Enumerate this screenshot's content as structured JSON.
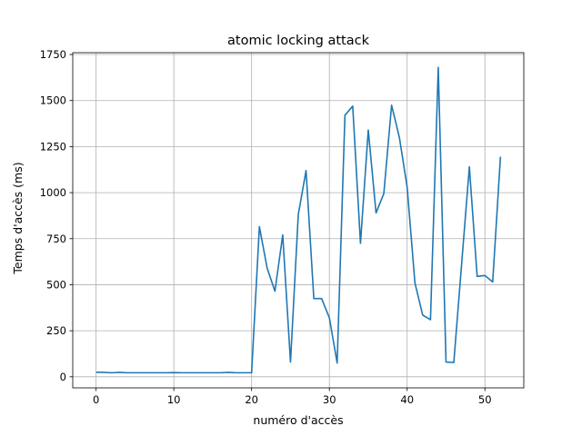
{
  "chart_data": {
    "type": "line",
    "title": "atomic locking attack",
    "xlabel": "numéro d'accès",
    "ylabel": "Temps d'accès (ms)",
    "xlim": [
      -3,
      55
    ],
    "ylim": [
      -60,
      1760
    ],
    "xticks": [
      0,
      10,
      20,
      30,
      40,
      50
    ],
    "yticks": [
      0,
      250,
      500,
      750,
      1000,
      1250,
      1500,
      1750
    ],
    "grid": true,
    "line_color": "#1f77b4",
    "series": [
      {
        "x": [
          0,
          1,
          2,
          3,
          4,
          5,
          6,
          7,
          8,
          9,
          10,
          11,
          12,
          13,
          14,
          15,
          16,
          17,
          18,
          19,
          20,
          21,
          22,
          23,
          24,
          25,
          26,
          27,
          28,
          29,
          30,
          31,
          32,
          33,
          34,
          35,
          36,
          37,
          38,
          39,
          40,
          41,
          42,
          43,
          44,
          45,
          46,
          47,
          48,
          49,
          50,
          51,
          52
        ],
        "values": [
          25,
          24,
          22,
          24,
          22,
          22,
          22,
          22,
          22,
          22,
          23,
          22,
          22,
          22,
          22,
          22,
          22,
          24,
          22,
          22,
          22,
          815,
          590,
          465,
          770,
          80,
          880,
          1120,
          425,
          425,
          320,
          75,
          1420,
          1470,
          725,
          1340,
          890,
          995,
          1475,
          1300,
          1030,
          510,
          335,
          310,
          1680,
          80,
          78,
          610,
          1140,
          545,
          550,
          515,
          1195
        ]
      }
    ]
  }
}
